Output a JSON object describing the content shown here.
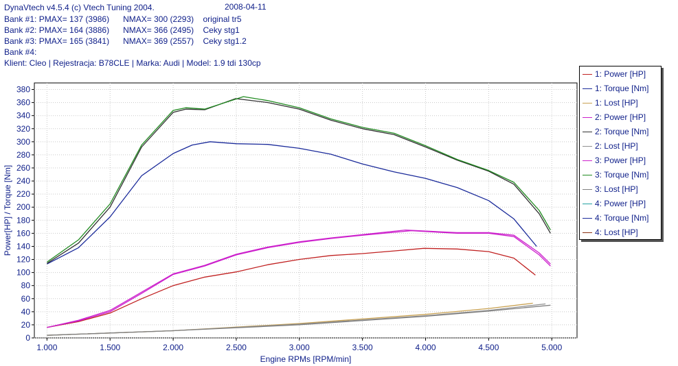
{
  "header": {
    "title": "DynaVtech v4.5.4 (c) Vtech Tuning 2004.",
    "date": "2008-04-11",
    "banks": [
      "Bank #1: PMAX= 137 (3986)      NMAX= 300 (2293)    original tr5",
      "Bank #2: PMAX= 164 (3886)      NMAX= 366 (2495)    Ceky stg1",
      "Bank #3: PMAX= 165 (3841)      NMAX= 369 (2557)    Ceky stg1.2",
      "Bank #4:"
    ],
    "client": "Klient: Cleo | Rejestracja: B78CLE | Marka: Audi | Model: 1.9 tdi 130cp"
  },
  "colors": {
    "axis_text": "#10208a",
    "bank1_power": "#c02020",
    "bank1_torque": "#1a2a9a",
    "bank2_power": "#cc20cc",
    "bank2_torque": "#303030",
    "bank3_power": "#cc20cc",
    "bank3_torque": "#208a20",
    "lost": "#c8a050",
    "lost2": "#909090",
    "lost3": "#808080"
  },
  "chart_data": {
    "type": "line",
    "xlabel": "Engine RPMs [RPM/min]",
    "ylabel": "Power[HP] / Torque [Nm]",
    "xlim": [
      900,
      5200
    ],
    "ylim": [
      0,
      390
    ],
    "xticks": [
      1000,
      1500,
      2000,
      2500,
      3000,
      3500,
      4000,
      4500,
      5000
    ],
    "xtick_labels": [
      "1.000",
      "1.500",
      "2.000",
      "2.500",
      "3.000",
      "3.500",
      "4.000",
      "4.500",
      "5.000"
    ],
    "yticks": [
      0,
      20,
      40,
      60,
      80,
      100,
      120,
      140,
      160,
      180,
      200,
      220,
      240,
      260,
      280,
      300,
      320,
      340,
      360,
      380
    ],
    "grid": true,
    "legend_position": "right",
    "legend": [
      "1: Power [HP]",
      "1: Torque [Nm]",
      "1: Lost [HP]",
      "2: Power [HP]",
      "2: Torque [Nm]",
      "2: Lost [HP]",
      "3: Power [HP]",
      "3: Torque [Nm]",
      "3: Lost [HP]",
      "4: Power [HP]",
      "4: Torque [Nm]",
      "4: Lost [HP]"
    ],
    "legend_colors": [
      "#c02020",
      "#1a2a9a",
      "#c8a050",
      "#cc20cc",
      "#303030",
      "#909090",
      "#cc20cc",
      "#208a20",
      "#808080",
      "#20a0a0",
      "#1a2a9a",
      "#8a3010"
    ],
    "series": [
      {
        "name": "1: Power [HP]",
        "color": "#c02020",
        "x": [
          1000,
          1250,
          1500,
          1750,
          2000,
          2250,
          2500,
          2750,
          3000,
          3250,
          3500,
          3750,
          3986,
          4250,
          4500,
          4700,
          4870
        ],
        "y": [
          16,
          25,
          38,
          60,
          80,
          93,
          101,
          112,
          120,
          126,
          129,
          133,
          137,
          136,
          132,
          122,
          96
        ]
      },
      {
        "name": "1: Torque [Nm]",
        "color": "#1a2a9a",
        "x": [
          1000,
          1250,
          1500,
          1750,
          2000,
          2150,
          2293,
          2500,
          2750,
          3000,
          3250,
          3500,
          3750,
          4000,
          4250,
          4500,
          4700,
          4880
        ],
        "y": [
          113,
          138,
          185,
          248,
          282,
          295,
          300,
          297,
          296,
          290,
          281,
          266,
          254,
          244,
          230,
          210,
          182,
          140
        ]
      },
      {
        "name": "1: Lost [HP]",
        "color": "#c8a050",
        "x": [
          1000,
          2000,
          3000,
          4000,
          4500,
          4850
        ],
        "y": [
          4,
          11,
          22,
          36,
          45,
          53
        ]
      },
      {
        "name": "2: Power [HP]",
        "color": "#cc20cc",
        "x": [
          1000,
          1250,
          1500,
          1750,
          2000,
          2250,
          2500,
          2750,
          3000,
          3250,
          3500,
          3886,
          4250,
          4500,
          4700,
          4900,
          4990
        ],
        "y": [
          16,
          26,
          40,
          68,
          97,
          110,
          127,
          138,
          146,
          152,
          157,
          164,
          160,
          160,
          155,
          127,
          110
        ]
      },
      {
        "name": "2: Torque [Nm]",
        "color": "#303030",
        "x": [
          1000,
          1250,
          1500,
          1750,
          2000,
          2100,
          2250,
          2495,
          2750,
          3000,
          3250,
          3500,
          3750,
          4000,
          4250,
          4500,
          4700,
          4900,
          4990
        ],
        "y": [
          114,
          145,
          200,
          292,
          345,
          350,
          349,
          366,
          360,
          350,
          333,
          320,
          311,
          292,
          272,
          255,
          235,
          190,
          160
        ]
      },
      {
        "name": "2: Lost [HP]",
        "color": "#909090",
        "x": [
          1000,
          2000,
          3000,
          4000,
          4500,
          4950
        ],
        "y": [
          4,
          11,
          21,
          34,
          42,
          52
        ]
      },
      {
        "name": "3: Power [HP]",
        "color": "#cc20cc",
        "x": [
          1000,
          1250,
          1500,
          1750,
          2000,
          2250,
          2500,
          2750,
          3000,
          3250,
          3500,
          3841,
          4250,
          4500,
          4700,
          4900,
          4990
        ],
        "y": [
          16,
          27,
          42,
          70,
          98,
          111,
          128,
          139,
          147,
          153,
          158,
          165,
          161,
          161,
          157,
          130,
          113
        ]
      },
      {
        "name": "3: Torque [Nm]",
        "color": "#208a20",
        "x": [
          1000,
          1250,
          1500,
          1750,
          2000,
          2100,
          2250,
          2557,
          2750,
          3000,
          3250,
          3500,
          3750,
          4000,
          4250,
          4500,
          4700,
          4900,
          4990
        ],
        "y": [
          116,
          150,
          205,
          295,
          348,
          352,
          350,
          369,
          363,
          352,
          335,
          322,
          313,
          294,
          273,
          256,
          238,
          195,
          165
        ]
      },
      {
        "name": "3: Lost [HP]",
        "color": "#808080",
        "x": [
          1000,
          2000,
          3000,
          4000,
          4500,
          4990
        ],
        "y": [
          4,
          11,
          20,
          33,
          41,
          50
        ]
      }
    ]
  }
}
